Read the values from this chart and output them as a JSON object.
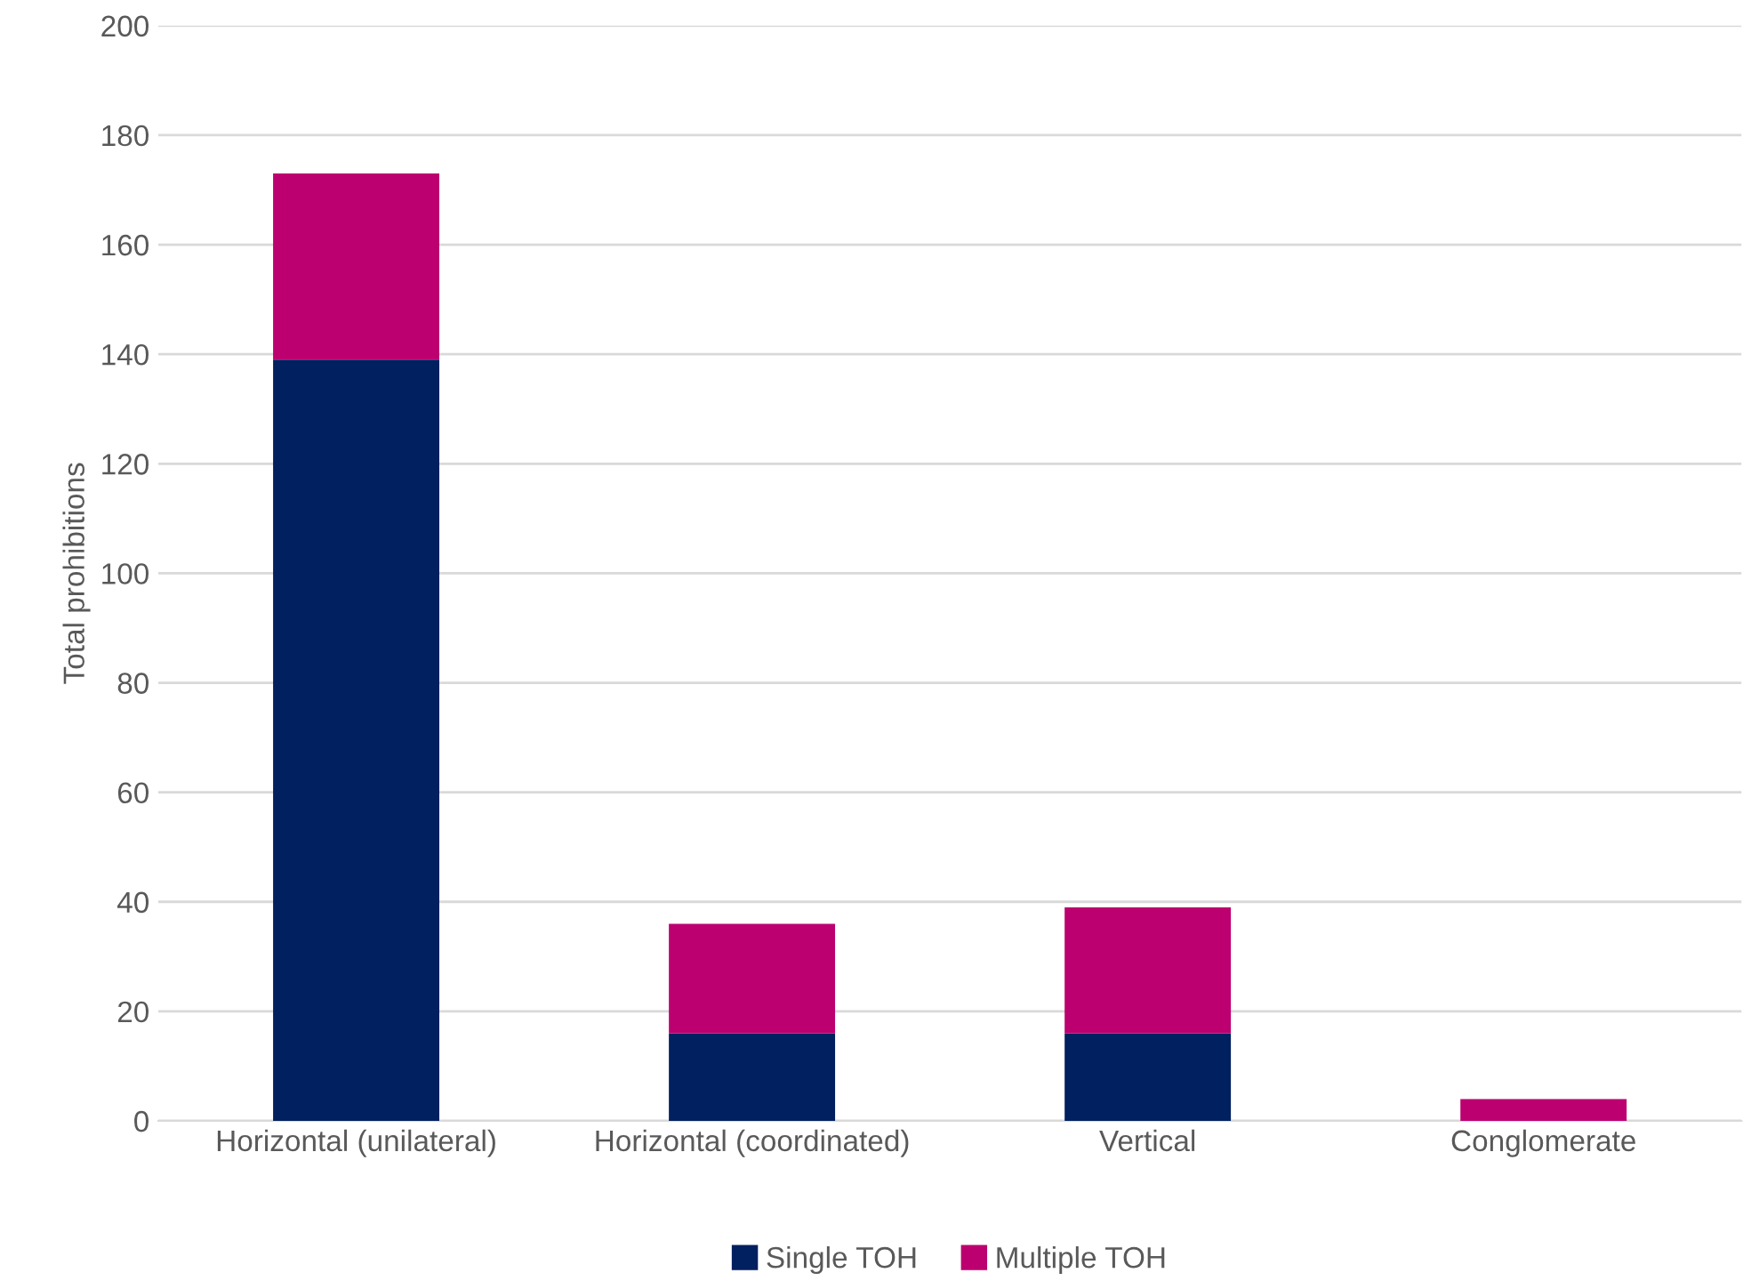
{
  "chart_data": {
    "type": "bar",
    "ylabel": "Total prohibitions",
    "categories": [
      "Horizontal (unilateral)",
      "Horizontal (coordinated)",
      "Vertical",
      "Conglomerate"
    ],
    "series": [
      {
        "name": "Single TOH",
        "color": "#002060",
        "values": [
          139,
          16,
          16,
          0
        ]
      },
      {
        "name": "Multiple TOH",
        "color": "#bc0070",
        "values": [
          34,
          20,
          23,
          4
        ]
      }
    ],
    "stacked": true,
    "ylim": [
      0,
      200
    ],
    "yticks": [
      0,
      20,
      40,
      60,
      80,
      100,
      120,
      140,
      160,
      180,
      200
    ],
    "grid": "y",
    "legend": "bottom"
  }
}
